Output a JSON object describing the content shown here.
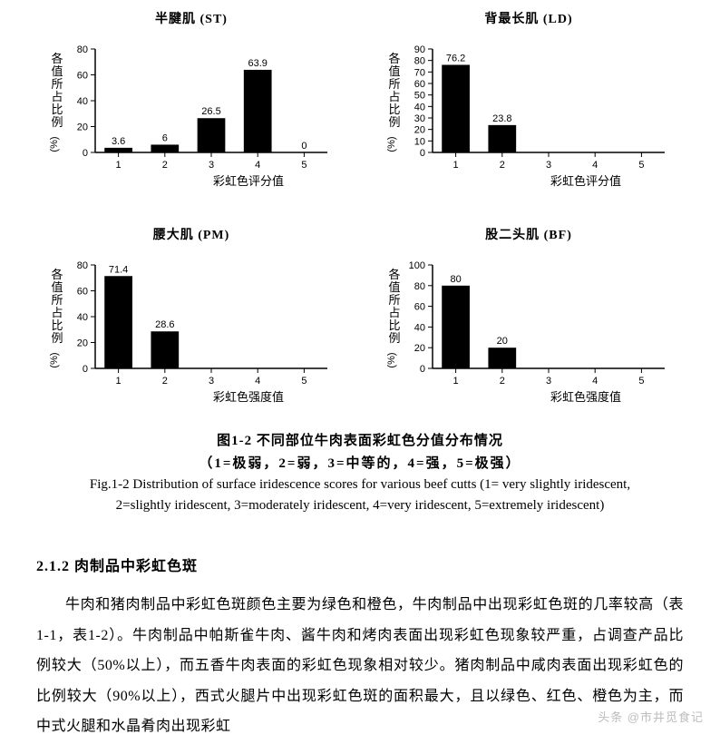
{
  "charts": {
    "st": {
      "type": "bar",
      "title": "半腱肌 (ST)",
      "ylabel": "各值所占比例(%)",
      "xlabel": "彩虹色评分值",
      "categories": [
        "1",
        "2",
        "3",
        "4",
        "5"
      ],
      "values": [
        3.6,
        6,
        26.5,
        63.9,
        0
      ],
      "value_labels": [
        "3.6",
        "6",
        "26.5",
        "63.9",
        "0"
      ],
      "ylim": [
        0,
        80
      ],
      "ytick_step": 20,
      "bar_color": "#000000",
      "axis_color": "#000000",
      "background_color": "#ffffff",
      "bar_width": 0.6,
      "label_fontsize": 13,
      "tick_fontsize": 11,
      "value_fontsize": 11,
      "title_fontsize": 14
    },
    "ld": {
      "type": "bar",
      "title": "背最长肌 (LD)",
      "ylabel": "各值所占比例(%)",
      "xlabel": "彩虹色评分值",
      "categories": [
        "1",
        "2",
        "3",
        "4",
        "5"
      ],
      "values": [
        76.2,
        23.8,
        0,
        0,
        0
      ],
      "value_labels": [
        "76.2",
        "23.8",
        "",
        "",
        ""
      ],
      "ylim": [
        0,
        90
      ],
      "ytick_step": 10,
      "bar_color": "#000000",
      "axis_color": "#000000",
      "background_color": "#ffffff",
      "bar_width": 0.6,
      "label_fontsize": 13,
      "tick_fontsize": 11,
      "value_fontsize": 11,
      "title_fontsize": 14
    },
    "pm": {
      "type": "bar",
      "title": "腰大肌 (PM)",
      "ylabel": "各值所占比例(%)",
      "xlabel": "彩虹色强度值",
      "categories": [
        "1",
        "2",
        "3",
        "4",
        "5"
      ],
      "values": [
        71.4,
        28.6,
        0,
        0,
        0
      ],
      "value_labels": [
        "71.4",
        "28.6",
        "",
        "",
        ""
      ],
      "ylim": [
        0,
        80
      ],
      "ytick_step": 20,
      "bar_color": "#000000",
      "axis_color": "#000000",
      "background_color": "#ffffff",
      "bar_width": 0.6,
      "label_fontsize": 13,
      "tick_fontsize": 11,
      "value_fontsize": 11,
      "title_fontsize": 14
    },
    "bf": {
      "type": "bar",
      "title": "股二头肌 (BF)",
      "ylabel": "各值所占比例(%)",
      "xlabel": "彩虹色强度值",
      "categories": [
        "1",
        "2",
        "3",
        "4",
        "5"
      ],
      "values": [
        80,
        20,
        0,
        0,
        0
      ],
      "value_labels": [
        "80",
        "20",
        "",
        "",
        ""
      ],
      "ylim": [
        0,
        100
      ],
      "ytick_step": 20,
      "bar_color": "#000000",
      "axis_color": "#000000",
      "background_color": "#ffffff",
      "bar_width": 0.6,
      "label_fontsize": 13,
      "tick_fontsize": 11,
      "value_fontsize": 11,
      "title_fontsize": 14
    }
  },
  "caption": {
    "zh_line1": "图1-2  不同部位牛肉表面彩虹色分值分布情况",
    "zh_line2": "（1=极弱，2=弱，3=中等的，4=强，5=极强）",
    "en_line1": "Fig.1-2   Distribution of surface iridescence scores for various beef cutts (1= very slightly iridescent,",
    "en_line2": "2=slightly iridescent, 3=moderately iridescent, 4=very iridescent, 5=extremely iridescent)"
  },
  "section": {
    "heading": "2.1.2 肉制品中彩虹色斑",
    "paragraph": "牛肉和猪肉制品中彩虹色斑颜色主要为绿色和橙色，牛肉制品中出现彩虹色斑的几率较高（表1-1，表1-2）。牛肉制品中帕斯雀牛肉、酱牛肉和烤肉表面出现彩虹色现象较严重，占调查产品比例较大（50%以上），而五香牛肉表面的彩虹色现象相对较少。猪肉制品中咸肉表面出现彩虹色的比例较大（90%以上），西式火腿片中出现彩虹色斑的面积最大，且以绿色、红色、橙色为主，而中式火腿和水晶肴肉出现彩虹"
  },
  "watermark": "头条 @市井觅食记"
}
